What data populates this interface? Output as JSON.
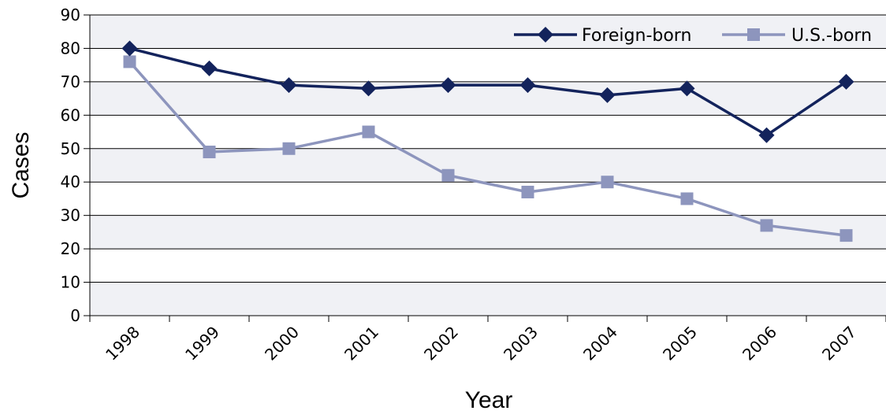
{
  "chart_data": {
    "type": "line",
    "categories": [
      "1998",
      "1999",
      "2000",
      "2001",
      "2002",
      "2003",
      "2004",
      "2005",
      "2006",
      "2007"
    ],
    "series": [
      {
        "name": "Foreign-born",
        "values": [
          80,
          74,
          69,
          68,
          69,
          69,
          66,
          68,
          54,
          70
        ],
        "color": "#13235c",
        "marker": "diamond"
      },
      {
        "name": "U.S.-born",
        "values": [
          76,
          49,
          50,
          55,
          42,
          37,
          40,
          35,
          27,
          24
        ],
        "color": "#8d95bd",
        "marker": "square"
      }
    ],
    "title": "",
    "xlabel": "Year",
    "ylabel": "Cases",
    "ylim": [
      0,
      90
    ],
    "yticks": [
      "0",
      "10",
      "20",
      "30",
      "40",
      "50",
      "60",
      "70",
      "80",
      "90"
    ],
    "grid": true,
    "legend_position": "top-right",
    "band_color": "#f0f1f5"
  }
}
